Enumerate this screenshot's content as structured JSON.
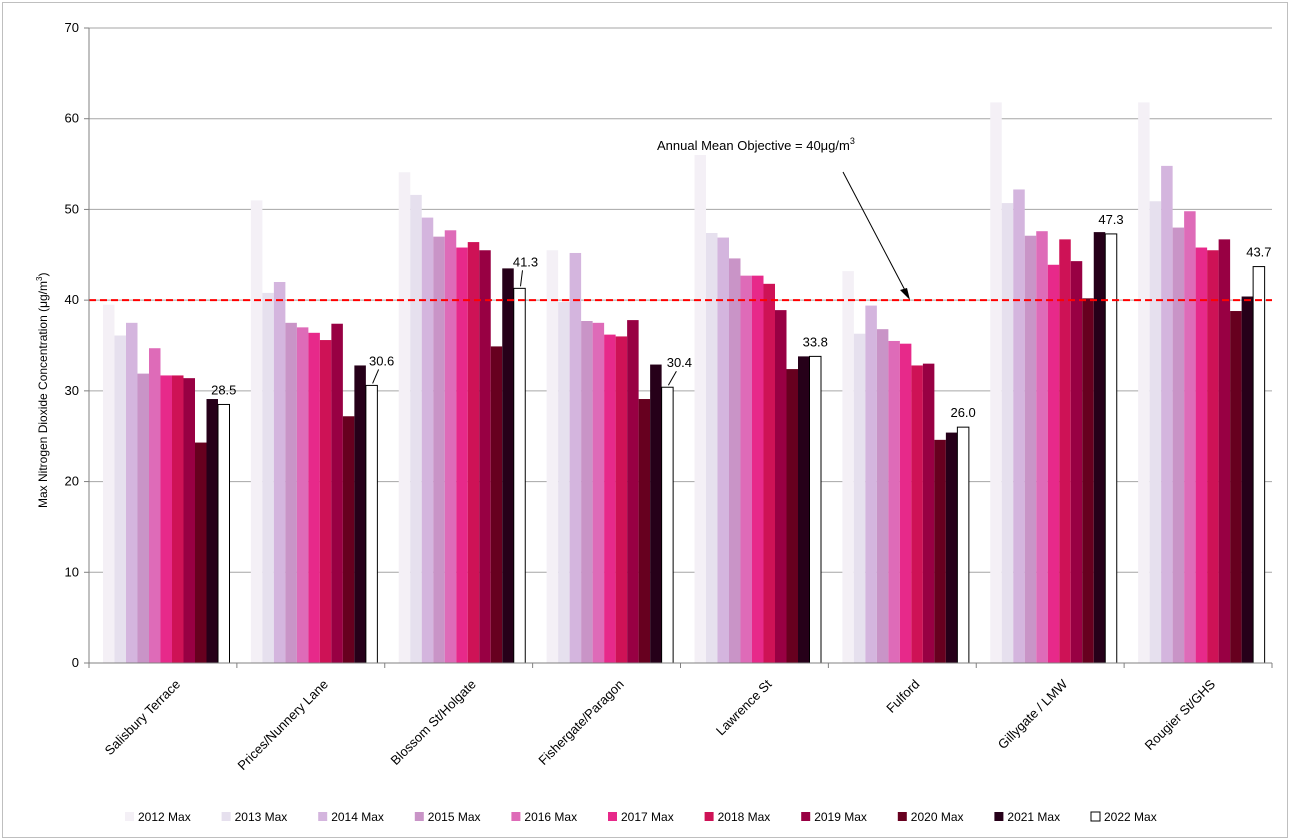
{
  "chart_data": {
    "type": "bar",
    "ylabel": "Max Nitrogen Dioxide Concentration (μg/m³)",
    "ylabel_main": "Max Nitrogen Dioxide Concentration (μg/m",
    "ylabel_sup": "3",
    "ylabel_end": ")",
    "ylim": [
      0,
      70
    ],
    "yticks": [
      0,
      10,
      20,
      30,
      40,
      50,
      60,
      70
    ],
    "grid": true,
    "legend_position": "bottom",
    "categories": [
      "Salisbury Terrace",
      "Prices/Nunnery Lane",
      "Blossom St/Holgate",
      "Fishergate/Paragon",
      "Lawrence St",
      "Fulford",
      "Gillygate / LMW",
      "Rougier St/GHS"
    ],
    "series": [
      {
        "name": "2012 Max",
        "color": "#f4f0f6",
        "values": [
          39.5,
          51.0,
          54.1,
          45.5,
          56.0,
          43.2,
          61.8,
          61.8
        ]
      },
      {
        "name": "2013 Max",
        "color": "#e6e0ee",
        "values": [
          36.1,
          40.8,
          51.6,
          39.8,
          47.4,
          36.3,
          50.7,
          50.9
        ]
      },
      {
        "name": "2014 Max",
        "color": "#d4b5de",
        "values": [
          37.5,
          42.0,
          49.1,
          45.2,
          46.9,
          39.4,
          52.2,
          54.8
        ]
      },
      {
        "name": "2015 Max",
        "color": "#c994c7",
        "values": [
          31.9,
          37.5,
          47.0,
          37.7,
          44.6,
          36.8,
          47.1,
          48.0
        ]
      },
      {
        "name": "2016 Max",
        "color": "#de6bb8",
        "values": [
          34.7,
          37.0,
          47.7,
          37.5,
          42.7,
          35.5,
          47.6,
          49.8
        ]
      },
      {
        "name": "2017 Max",
        "color": "#e7298a",
        "values": [
          31.7,
          36.4,
          45.8,
          36.2,
          42.7,
          35.2,
          43.9,
          45.8
        ]
      },
      {
        "name": "2018 Max",
        "color": "#ce1256",
        "values": [
          31.7,
          35.6,
          46.4,
          36.0,
          41.8,
          32.8,
          46.7,
          45.5
        ]
      },
      {
        "name": "2019 Max",
        "color": "#980043",
        "values": [
          31.4,
          37.4,
          45.5,
          37.8,
          38.9,
          33.0,
          44.3,
          46.7
        ]
      },
      {
        "name": "2020 Max",
        "color": "#67001f",
        "values": [
          24.3,
          27.2,
          34.9,
          29.1,
          32.4,
          24.6,
          40.2,
          38.8
        ]
      },
      {
        "name": "2021 Max",
        "color": "#260019",
        "values": [
          29.1,
          32.8,
          43.5,
          32.9,
          33.8,
          25.4,
          47.5,
          40.4
        ]
      },
      {
        "name": "2022 Max",
        "color": "#ffffff",
        "values": [
          28.5,
          30.6,
          41.3,
          30.4,
          33.8,
          26.0,
          47.3,
          43.7
        ]
      }
    ],
    "data_labels": [
      "28.5",
      "30.6",
      "41.3",
      "30.4",
      "33.8",
      "26.0",
      "47.3",
      "43.7"
    ],
    "objective_line": {
      "value": 40,
      "color": "#ff0000",
      "style": "dashed"
    },
    "annotation": {
      "text_main": "Annual Mean Objective  = 40μg/m",
      "text_sup": "3"
    }
  }
}
